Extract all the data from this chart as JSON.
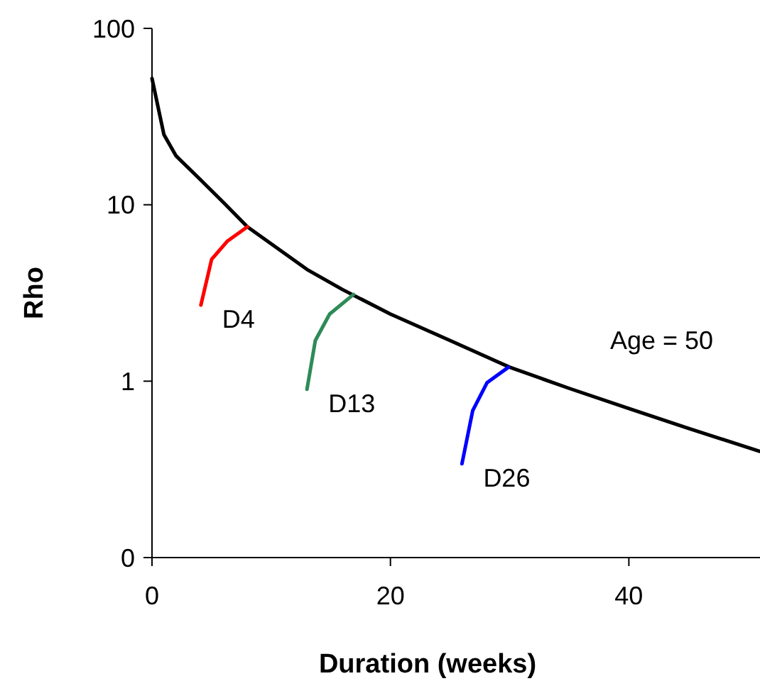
{
  "chart_data": {
    "type": "line",
    "xlabel": "Duration (weeks)",
    "ylabel": "Rho",
    "log": "y",
    "xlim": [
      0,
      51
    ],
    "xticks": [
      0,
      20,
      40
    ],
    "ylim": [
      0.1,
      100
    ],
    "yticks": [
      {
        "value": 0.1,
        "label": "0"
      },
      1,
      10,
      100
    ],
    "grid": false,
    "marker": "none",
    "line_style": "solid",
    "series": [
      {
        "color": "#000000",
        "x": [
          0,
          1,
          2,
          4,
          6,
          8,
          10,
          13,
          16,
          20,
          25,
          30,
          35,
          40,
          45,
          51
        ],
        "values": [
          52,
          25,
          19,
          14,
          10.3,
          7.5,
          6,
          4.3,
          3.3,
          2.4,
          1.7,
          1.2,
          0.91,
          0.7,
          0.54,
          0.4
        ]
      },
      {
        "name": "D4",
        "color": "#ff0000",
        "x": [
          4.1,
          5,
          6.3,
          8
        ],
        "values": [
          2.7,
          4.9,
          6.2,
          7.5
        ]
      },
      {
        "name": "D13",
        "color": "#2e8b57",
        "x": [
          13,
          13.7,
          14.9,
          16.9
        ],
        "values": [
          0.9,
          1.7,
          2.4,
          3.1
        ]
      },
      {
        "name": "D26",
        "color": "#0000ff",
        "x": [
          26,
          26.9,
          28.1,
          29.9
        ],
        "values": [
          0.34,
          0.68,
          0.98,
          1.2
        ]
      }
    ],
    "annotations": [
      "Age = 50"
    ]
  }
}
